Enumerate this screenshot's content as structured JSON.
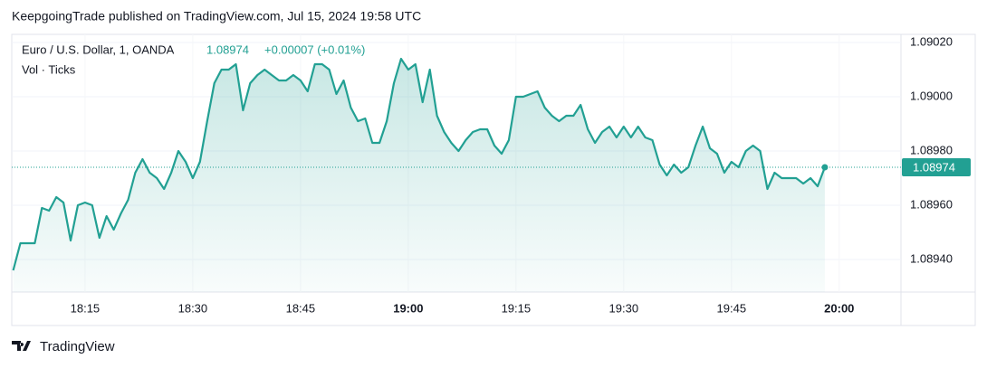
{
  "publisher": "KeepgoingTrade published on TradingView.com, Jul 15, 2024 19:58 UTC",
  "footer": "TradingView",
  "chart_data": {
    "type": "area",
    "title": "Euro / U.S. Dollar, 1, OANDA",
    "price": "1.08974",
    "change": "+0.00007 (+0.01%)",
    "indicator": "Vol · Ticks",
    "color": "#22a093",
    "x": [
      1085,
      1086,
      1088,
      1089,
      1090,
      1091,
      1092,
      1093,
      1094,
      1095,
      1096,
      1097,
      1098,
      1099,
      1100,
      1101,
      1102,
      1103,
      1104,
      1105,
      1106,
      1107,
      1108,
      1109,
      1110,
      1111,
      1112,
      1113,
      1114,
      1115,
      1116,
      1117,
      1118,
      1119,
      1120,
      1121,
      1122,
      1123,
      1124,
      1125,
      1126,
      1127,
      1128,
      1129,
      1130,
      1131,
      1132,
      1133,
      1134,
      1135,
      1136,
      1137,
      1138,
      1139,
      1140,
      1141,
      1142,
      1143,
      1144,
      1145,
      1146,
      1147,
      1148,
      1149,
      1150,
      1151,
      1152,
      1153,
      1154,
      1155,
      1156,
      1157,
      1158,
      1159,
      1160,
      1161,
      1162,
      1163,
      1164,
      1165,
      1166,
      1167,
      1168,
      1169,
      1170,
      1171,
      1172,
      1173,
      1174,
      1175,
      1176,
      1177,
      1178,
      1179,
      1180,
      1181,
      1182,
      1183,
      1184,
      1185,
      1186,
      1187,
      1188,
      1189,
      1190,
      1191,
      1192,
      1193,
      1194,
      1195,
      1196,
      1197,
      1198
    ],
    "values": [
      1.08936,
      1.08946,
      1.08946,
      1.08959,
      1.08958,
      1.08963,
      1.08961,
      1.08947,
      1.0896,
      1.08961,
      1.0896,
      1.08948,
      1.08956,
      1.08951,
      1.08957,
      1.08962,
      1.08972,
      1.08977,
      1.08972,
      1.0897,
      1.08966,
      1.08972,
      1.0898,
      1.08976,
      1.0897,
      1.08976,
      1.08991,
      1.09005,
      1.0901,
      1.0901,
      1.09012,
      1.08995,
      1.09005,
      1.09008,
      1.0901,
      1.09008,
      1.09006,
      1.09006,
      1.09008,
      1.09006,
      1.09002,
      1.09012,
      1.09012,
      1.0901,
      1.09001,
      1.09006,
      1.08996,
      1.08991,
      1.08992,
      1.08983,
      1.08983,
      1.08991,
      1.09005,
      1.09014,
      1.0901,
      1.09012,
      1.08998,
      1.0901,
      1.08993,
      1.08987,
      1.08983,
      1.0898,
      1.08984,
      1.08987,
      1.08988,
      1.08988,
      1.08982,
      1.08979,
      1.08984,
      1.09,
      1.09,
      1.09001,
      1.09002,
      1.08996,
      1.08993,
      1.08991,
      1.08993,
      1.08993,
      1.08997,
      1.08988,
      1.08983,
      1.08987,
      1.08989,
      1.08985,
      1.08989,
      1.08985,
      1.08989,
      1.08985,
      1.08984,
      1.08975,
      1.08971,
      1.08975,
      1.08972,
      1.08974,
      1.08982,
      1.08989,
      1.08981,
      1.08979,
      1.08972,
      1.08976,
      1.08974,
      1.0898,
      1.08982,
      1.0898,
      1.08966,
      1.08972,
      1.0897,
      1.0897,
      1.0897,
      1.08968,
      1.0897,
      1.08967,
      1.08974
    ],
    "xlim": [
      1084.8,
      1208.6
    ],
    "ylim": [
      1.08928,
      1.09023
    ],
    "xticks": [
      {
        "value": 1095,
        "label": "18:15"
      },
      {
        "value": 1110,
        "label": "18:30"
      },
      {
        "value": 1125,
        "label": "18:45"
      },
      {
        "value": 1140,
        "label": "19:00"
      },
      {
        "value": 1155,
        "label": "19:15"
      },
      {
        "value": 1170,
        "label": "19:30"
      },
      {
        "value": 1185,
        "label": "19:45"
      },
      {
        "value": 1200,
        "label": "20:00"
      }
    ],
    "yticks": [
      {
        "value": 1.0894,
        "label": "1.08940"
      },
      {
        "value": 1.0896,
        "label": "1.08960"
      },
      {
        "value": 1.0898,
        "label": "1.08980"
      },
      {
        "value": 1.09,
        "label": "1.09000"
      },
      {
        "value": 1.0902,
        "label": "1.09020"
      }
    ]
  }
}
